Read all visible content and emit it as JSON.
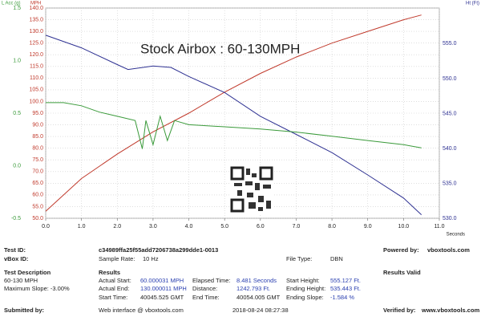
{
  "chart_data": {
    "type": "line",
    "title": "Stock Airbox : 60-130MPH",
    "x_label": "Seconds",
    "y_label": "MPH",
    "y2_label": "Ht (Ft)",
    "y3_label": "L Acc (g)",
    "xlim": [
      0,
      11
    ],
    "xticks": [
      {
        "value": 0,
        "label": "0.0"
      },
      {
        "value": 1,
        "label": "1.0"
      },
      {
        "value": 2,
        "label": "2.0"
      },
      {
        "value": 3,
        "label": "3.0"
      },
      {
        "value": 4,
        "label": "4.0"
      },
      {
        "value": 5,
        "label": "5.0"
      },
      {
        "value": 6,
        "label": "6.0"
      },
      {
        "value": 7,
        "label": "7.0"
      },
      {
        "value": 8,
        "label": "8.0"
      },
      {
        "value": 9,
        "label": "9.0"
      },
      {
        "value": 10,
        "label": "10.0"
      },
      {
        "value": 11,
        "label": "11.0"
      }
    ],
    "ylim": [
      50,
      140
    ],
    "yticks": [
      {
        "value": 50,
        "label": "50.0"
      },
      {
        "value": 55,
        "label": "55.0"
      },
      {
        "value": 60,
        "label": "60.0"
      },
      {
        "value": 65,
        "label": "65.0"
      },
      {
        "value": 70,
        "label": "70.0"
      },
      {
        "value": 75,
        "label": "75.0"
      },
      {
        "value": 80,
        "label": "80.0"
      },
      {
        "value": 85,
        "label": "85.0"
      },
      {
        "value": 90,
        "label": "90.0"
      },
      {
        "value": 95,
        "label": "95.0"
      },
      {
        "value": 100,
        "label": "100.0"
      },
      {
        "value": 105,
        "label": "105.0"
      },
      {
        "value": 110,
        "label": "110.0"
      },
      {
        "value": 115,
        "label": "115.0"
      },
      {
        "value": 120,
        "label": "120.0"
      },
      {
        "value": 125,
        "label": "125.0"
      },
      {
        "value": 130,
        "label": "130.0"
      },
      {
        "value": 135,
        "label": "135.0"
      },
      {
        "value": 140,
        "label": "140.0"
      }
    ],
    "y2lim": [
      530,
      560.1
    ],
    "y2ticks": [
      {
        "value": 530,
        "label": "530.0"
      },
      {
        "value": 535,
        "label": "535.0"
      },
      {
        "value": 540,
        "label": "540.0"
      },
      {
        "value": 545,
        "label": "545.0"
      },
      {
        "value": 550,
        "label": "550.0"
      },
      {
        "value": 555,
        "label": "555.0"
      }
    ],
    "y3lim": [
      -0.5,
      1.5
    ],
    "y3ticks": [
      -0.5,
      {
        "value": 0,
        "label": "0.0"
      },
      0.5,
      {
        "value": 1,
        "label": "1.0"
      },
      1.5
    ],
    "grid": true,
    "series": [
      {
        "color": "#c0392b",
        "axis": "y",
        "x": [
          0,
          1,
          2,
          3,
          4,
          5,
          6,
          7,
          8,
          9,
          10,
          10.5
        ],
        "values": [
          53,
          67,
          77.5,
          87,
          95,
          104,
          112,
          119,
          125,
          130,
          135,
          137
        ]
      },
      {
        "color": "#2e3192",
        "axis": "y2",
        "x": [
          0,
          1,
          2,
          2.3,
          3,
          3.5,
          4,
          5,
          6,
          7,
          8,
          9,
          10,
          10.5
        ],
        "values": [
          556.2,
          554.4,
          552,
          551.3,
          551.8,
          551.6,
          550.3,
          548,
          544.6,
          542,
          539.4,
          536.2,
          532.9,
          530.5
        ]
      },
      {
        "color": "#3a9a3a",
        "axis": "y3",
        "x": [
          0,
          0.5,
          1,
          1.5,
          2,
          2.5,
          2.7,
          2.8,
          3,
          3.2,
          3.4,
          3.6,
          4,
          5,
          6,
          7,
          8,
          9,
          10,
          10.5
        ],
        "values": [
          0.6,
          0.6,
          0.57,
          0.51,
          0.47,
          0.43,
          0.16,
          0.43,
          0.2,
          0.47,
          0.24,
          0.43,
          0.39,
          0.37,
          0.35,
          0.32,
          0.28,
          0.24,
          0.2,
          0.17
        ]
      }
    ]
  },
  "report": {
    "test_id_label": "Test ID:",
    "test_id": "c34989ffa25f55add7206738a299dde1-0013",
    "powered_by_label": "Powered by:",
    "powered_by": "vboxtools.com",
    "vbox_id_label": "vBox ID:",
    "sample_rate_label": "Sample Rate:",
    "sample_rate": "10 Hz",
    "file_type_label": "File Type:",
    "file_type": "DBN",
    "test_description_label": "Test Description",
    "results_label": "Results",
    "results_valid": "Results Valid",
    "test_description": "60-130 MPH",
    "maximum_slope": "Maximum Slope: -3.00%",
    "actual_start_label": "Actual Start:",
    "actual_start": "60.000031 MPH",
    "elapsed_time_label": "Elapsed Time:",
    "elapsed_time": "8.481 Seconds",
    "start_height_label": "Start Height:",
    "start_height": "555.127 Ft.",
    "actual_end_label": "Actual End:",
    "actual_end": "130.000011 MPH",
    "distance_label": "Distance:",
    "distance": "1242.793 Ft.",
    "ending_height_label": "Ending Height:",
    "ending_height": "535.443 Ft.",
    "start_time_label": "Start Time:",
    "start_time": "40045.525 GMT",
    "end_time_label": "End Time:",
    "end_time": "40054.005 GMT",
    "ending_slope_label": "Ending Slope:",
    "ending_slope": "-1.584 %",
    "submitted_by_label": "Submitted by:",
    "submitted_by": "Web interface @ vboxtools.com",
    "timestamp": "2018-08-24 08:27:38",
    "verified_by_label": "Verified by:",
    "verified_by": "www.vboxtools.com"
  }
}
